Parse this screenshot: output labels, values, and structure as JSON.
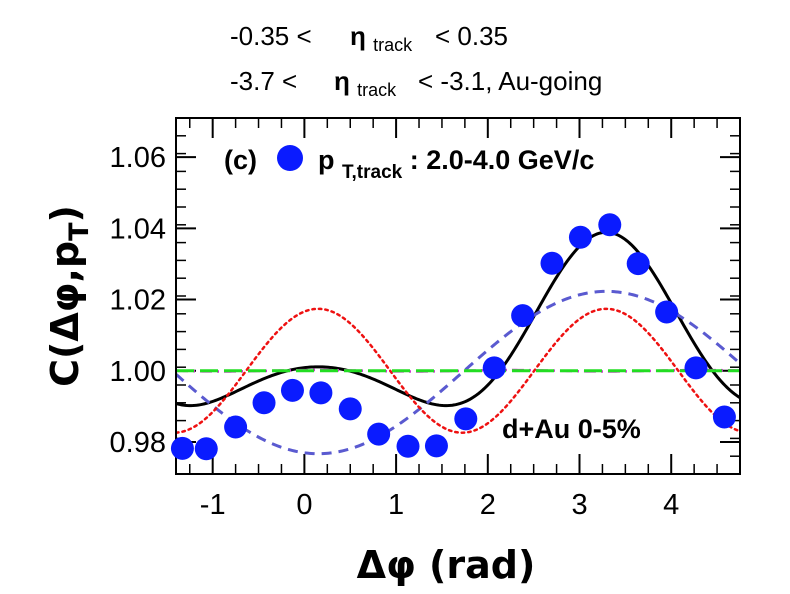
{
  "header": {
    "line1": {
      "prefix": "-0.35 <",
      "eta": "η",
      "sub": "track",
      "suffix": "< 0.35"
    },
    "line2": {
      "prefix": "-3.7 <",
      "eta": "η",
      "sub": "track",
      "suffix": "< -3.1, Au-going"
    }
  },
  "chart_data": {
    "type": "scatter",
    "panel_label": "(c)",
    "legend": {
      "prefix": "p",
      "sub": "T,track",
      "suffix": ": 2.0-4.0 GeV/c"
    },
    "system_label": "d+Au 0-5%",
    "xlabel": "Δφ (rad)",
    "ylabel": "C(Δφ,pT)",
    "xlim": [
      -1.4,
      4.75
    ],
    "ylim": [
      0.971,
      1.071
    ],
    "xticks": [
      -1,
      0,
      1,
      2,
      3,
      4
    ],
    "yticks": [
      0.98,
      1.0,
      1.02,
      1.04,
      1.06
    ],
    "ytick_labels": [
      "0.98",
      "1.00",
      "1.02",
      "1.04",
      "1.06"
    ],
    "series": [
      {
        "style": "markers",
        "color": "#0a1bff",
        "x": [
          -1.33,
          -1.07,
          -0.75,
          -0.44,
          -0.13,
          0.18,
          0.5,
          0.81,
          1.13,
          1.44,
          1.76,
          2.07,
          2.38,
          2.7,
          3.01,
          3.33,
          3.64,
          3.95,
          4.27,
          4.58
        ],
        "y": [
          0.9782,
          0.9781,
          0.9842,
          0.991,
          0.9945,
          0.9938,
          0.9893,
          0.9822,
          0.9788,
          0.9789,
          0.9865,
          1.0008,
          1.0155,
          1.0302,
          1.0375,
          1.041,
          1.0301,
          1.0165,
          1.0008,
          0.987
        ]
      },
      {
        "style": "solid",
        "color": "#000000",
        "curve": {
          "c0": 1.0055,
          "a1": -0.0165,
          "a2": 0.0145,
          "a3": -0.0024,
          "phase": 0.15
        }
      },
      {
        "style": "dashed",
        "color": "#5a5ad0",
        "curve": {
          "c0": 0.9995,
          "a1": -0.0228,
          "a2": 0,
          "a3": 0,
          "phase": 0.15
        }
      },
      {
        "style": "dotted",
        "color": "#ee1111",
        "curve": {
          "c0": 1.0,
          "a1": 0,
          "a2": 0.0174,
          "a3": 0,
          "phase": 0.15
        }
      },
      {
        "style": "dashdot",
        "color": "#cc33cc",
        "curve": {
          "c0": 1.0,
          "a1": 0,
          "a2": 0,
          "a3": 0.0002,
          "phase": 0.15
        }
      },
      {
        "style": "longdash",
        "color": "#22dd22",
        "curve": {
          "c0": 1.0,
          "a1": 0,
          "a2": 0,
          "a3": 0,
          "phase": 0
        }
      }
    ]
  }
}
